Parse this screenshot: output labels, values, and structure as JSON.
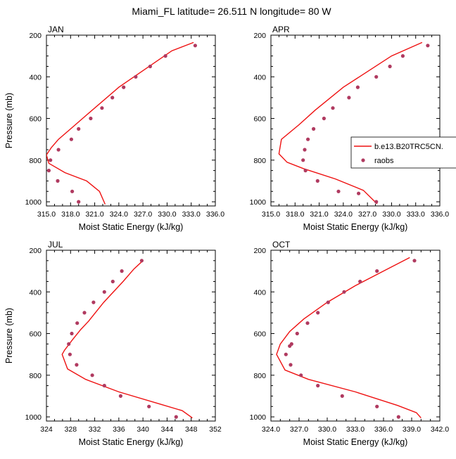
{
  "title": "Miami_FL  latitude= 26.511 N longitude= 80 W",
  "legend": {
    "model_label": "b.e13.B20TRC5CN.",
    "obs_label": "raobs",
    "model_color": "#ee1111",
    "obs_color": "#b03a60"
  },
  "chart_data": [
    {
      "type": "line",
      "label": "JAN",
      "xlabel": "Moist Static Energy (kJ/kg)",
      "ylabel": "Pressure (mb)",
      "xlim": [
        315,
        336
      ],
      "ylim": [
        1020,
        200
      ],
      "xticks": [
        "315.0",
        "318.0",
        "321.0",
        "324.0",
        "327.0",
        "330.0",
        "333.0",
        "336.0"
      ],
      "yticks": [
        "200",
        "400",
        "600",
        "800",
        "1000"
      ],
      "model": {
        "x": [
          333.3,
          330.6,
          324.0,
          319.5,
          318.0,
          316.5,
          315.6,
          315.0,
          315.3,
          317.3,
          320.0,
          321.6,
          322.3
        ],
        "y": [
          235,
          275,
          450,
          600,
          650,
          700,
          740,
          775,
          815,
          860,
          900,
          950,
          1012
        ]
      },
      "obs": {
        "x": [
          333.5,
          329.8,
          327.9,
          326.1,
          324.6,
          323.2,
          321.9,
          320.5,
          319.0,
          318.1,
          316.5,
          315.5,
          315.3,
          316.4,
          318.2,
          319.0
        ],
        "y": [
          250,
          300,
          350,
          400,
          450,
          500,
          550,
          600,
          650,
          700,
          750,
          800,
          850,
          900,
          950,
          1000
        ]
      }
    },
    {
      "type": "line",
      "label": "APR",
      "xlabel": "Moist Static Energy (kJ/kg)",
      "ylabel": "",
      "xlim": [
        315,
        336
      ],
      "ylim": [
        1020,
        200
      ],
      "xticks": [
        "315.0",
        "318.0",
        "321.0",
        "324.0",
        "327.0",
        "330.0",
        "333.0",
        "336.0"
      ],
      "yticks": [
        "200",
        "400",
        "600",
        "800",
        "1000"
      ],
      "model": {
        "x": [
          333.8,
          330.0,
          324.0,
          320.5,
          318.5,
          316.3,
          316.0,
          317.0,
          319.0,
          323.0,
          326.5,
          328.2
        ],
        "y": [
          235,
          300,
          450,
          560,
          630,
          700,
          770,
          810,
          840,
          890,
          945,
          1010
        ]
      },
      "obs": {
        "x": [
          334.5,
          331.4,
          329.8,
          328.1,
          325.8,
          324.7,
          322.7,
          321.6,
          320.3,
          319.6,
          319.2,
          319.0,
          319.3,
          320.8,
          323.4,
          325.9,
          328.1
        ],
        "y": [
          250,
          300,
          350,
          400,
          450,
          500,
          550,
          600,
          650,
          700,
          750,
          800,
          850,
          900,
          950,
          960,
          1000
        ]
      }
    },
    {
      "type": "line",
      "label": "JUL",
      "xlabel": "Moist Static Energy (kJ/kg)",
      "ylabel": "Pressure (mb)",
      "xlim": [
        324,
        352
      ],
      "ylim": [
        1020,
        200
      ],
      "xticks": [
        "324",
        "328",
        "332",
        "336",
        "340",
        "344",
        "348",
        "352"
      ],
      "yticks": [
        "200",
        "400",
        "600",
        "800",
        "1000"
      ],
      "model": {
        "x": [
          340.0,
          338.5,
          336.7,
          333.5,
          331.0,
          329.7,
          328.3,
          327.0,
          326.6,
          327.5,
          330.5,
          336.0,
          343.0,
          346.5,
          348.2
        ],
        "y": [
          250,
          290,
          350,
          450,
          540,
          580,
          630,
          680,
          700,
          770,
          820,
          880,
          940,
          970,
          1005
        ]
      },
      "obs": {
        "x": [
          339.8,
          336.5,
          335.0,
          333.6,
          331.8,
          330.3,
          329.1,
          328.2,
          327.7,
          327.9,
          329.0,
          331.6,
          333.6,
          336.3,
          341.0,
          345.5
        ],
        "y": [
          250,
          300,
          350,
          400,
          450,
          500,
          550,
          600,
          650,
          700,
          750,
          800,
          850,
          900,
          950,
          1000
        ]
      }
    },
    {
      "type": "line",
      "label": "OCT",
      "xlabel": "Moist Static Energy (kJ/kg)",
      "ylabel": "",
      "xlim": [
        324,
        342
      ],
      "ylim": [
        1020,
        200
      ],
      "xticks": [
        "324.0",
        "327.0",
        "330.0",
        "333.0",
        "336.0",
        "339.0",
        "342.0"
      ],
      "yticks": [
        "200",
        "400",
        "600",
        "800",
        "1000"
      ],
      "model": {
        "x": [
          338.8,
          336.0,
          333.0,
          330.0,
          327.5,
          326.0,
          325.0,
          324.6,
          325.5,
          328.0,
          333.0,
          337.5,
          339.5,
          340.0
        ],
        "y": [
          235,
          300,
          370,
          450,
          530,
          590,
          650,
          700,
          775,
          820,
          880,
          945,
          980,
          1005
        ]
      },
      "obs": {
        "x": [
          339.3,
          335.3,
          333.5,
          331.8,
          330.1,
          329.0,
          327.9,
          326.8,
          326.2,
          326.0,
          325.6,
          326.1,
          327.2,
          329.0,
          331.6,
          335.3,
          337.6
        ],
        "y": [
          250,
          300,
          350,
          400,
          450,
          500,
          550,
          600,
          650,
          660,
          700,
          750,
          800,
          850,
          900,
          950,
          1000
        ]
      }
    }
  ]
}
